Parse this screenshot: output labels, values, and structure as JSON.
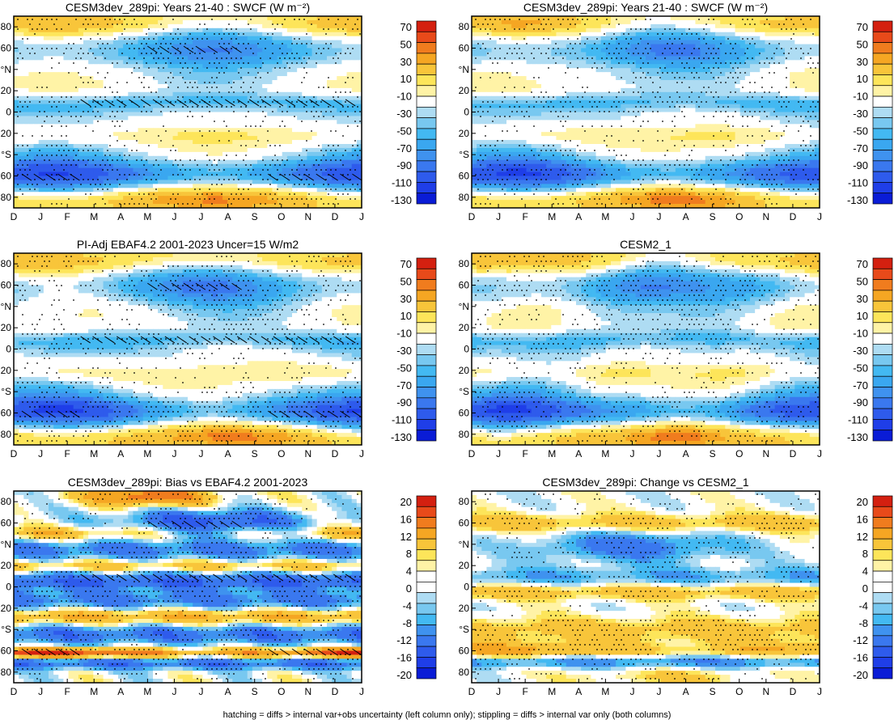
{
  "footnote": "hatching = diffs > internal var+obs uncertainty (left column only); stippling = diffs > internal var only (both columns)",
  "colors": {
    "abs_scale": [
      "#0a1cd6",
      "#1f3ee8",
      "#2e5bec",
      "#3a78ef",
      "#3f92ef",
      "#3aa7f0",
      "#43b9f2",
      "#78c8f0",
      "#aedcf3",
      "#ffffff",
      "#fff3a6",
      "#fde55a",
      "#f8c53a",
      "#f5a623",
      "#f07c1e",
      "#e84a1a",
      "#d42010"
    ],
    "diff_scale": [
      "#0a1cd6",
      "#1f3ee8",
      "#2e5bec",
      "#3a78ef",
      "#3f92ef",
      "#43b9f2",
      "#78c8f0",
      "#aedcf3",
      "#ffffff",
      "#ffffff",
      "#fff3a6",
      "#fde55a",
      "#f8c53a",
      "#f5a623",
      "#f07c1e",
      "#e84a1a",
      "#d42010"
    ]
  },
  "chart_data": [
    {
      "type": "heatmap",
      "id": "p1",
      "title": "CESM3dev_289pi: Years 21-40 : SWCF (W m⁻²)",
      "x_ticks": [
        "D",
        "J",
        "F",
        "M",
        "A",
        "M",
        "J",
        "J",
        "A",
        "S",
        "O",
        "N",
        "D",
        "J"
      ],
      "y_ticks": [
        "80",
        "60",
        "°N",
        "20",
        "0",
        "20",
        "°S",
        "60",
        "80"
      ],
      "colorbar": [
        "70",
        "50",
        "30",
        "10",
        "-10",
        "-30",
        "-50",
        "-70",
        "-90",
        "-110",
        "-130"
      ],
      "field": "abs",
      "variant": 0,
      "hatching": true,
      "stippling": true
    },
    {
      "type": "heatmap",
      "id": "p2",
      "title": "CESM3dev_289pi: Years 21-40 : SWCF (W m⁻²)",
      "x_ticks": [
        "D",
        "J",
        "F",
        "M",
        "A",
        "M",
        "J",
        "J",
        "A",
        "S",
        "O",
        "N",
        "D",
        "J"
      ],
      "y_ticks": [
        "80",
        "60",
        "°N",
        "20",
        "0",
        "20",
        "°S",
        "60",
        "80"
      ],
      "colorbar": [
        "70",
        "50",
        "30",
        "10",
        "-10",
        "-30",
        "-50",
        "-70",
        "-90",
        "-110",
        "-130"
      ],
      "field": "abs",
      "variant": 1,
      "hatching": false,
      "stippling": true
    },
    {
      "type": "heatmap",
      "id": "p3",
      "title": "PI-Adj EBAF4.2 2001-2023 Uncer=15 W/m2",
      "x_ticks": [
        "D",
        "J",
        "F",
        "M",
        "A",
        "M",
        "J",
        "J",
        "A",
        "S",
        "O",
        "N",
        "D",
        "J"
      ],
      "y_ticks": [
        "80",
        "60",
        "°N",
        "20",
        "0",
        "20",
        "°S",
        "60",
        "80"
      ],
      "colorbar": [
        "70",
        "50",
        "30",
        "10",
        "-10",
        "-30",
        "-50",
        "-70",
        "-90",
        "-110",
        "-130"
      ],
      "field": "abs",
      "variant": 2,
      "hatching": true,
      "stippling": true
    },
    {
      "type": "heatmap",
      "id": "p4",
      "title": "CESM2_1",
      "x_ticks": [
        "D",
        "J",
        "F",
        "M",
        "A",
        "M",
        "J",
        "J",
        "A",
        "S",
        "O",
        "N",
        "D",
        "J"
      ],
      "y_ticks": [
        "80",
        "60",
        "°N",
        "20",
        "0",
        "20",
        "°S",
        "60",
        "80"
      ],
      "colorbar": [
        "70",
        "50",
        "30",
        "10",
        "-10",
        "-30",
        "-50",
        "-70",
        "-90",
        "-110",
        "-130"
      ],
      "field": "abs",
      "variant": 3,
      "hatching": false,
      "stippling": true
    },
    {
      "type": "heatmap",
      "id": "p5",
      "title": "CESM3dev_289pi: Bias vs EBAF4.2 2001-2023",
      "x_ticks": [
        "D",
        "J",
        "F",
        "M",
        "A",
        "M",
        "J",
        "J",
        "A",
        "S",
        "O",
        "N",
        "D",
        "J"
      ],
      "y_ticks": [
        "80",
        "60",
        "°N",
        "20",
        "0",
        "20",
        "°S",
        "60",
        "80"
      ],
      "colorbar": [
        "20",
        "16",
        "12",
        "8",
        "4",
        "0",
        "-4",
        "-8",
        "-12",
        "-16",
        "-20"
      ],
      "field": "bias",
      "variant": 0,
      "hatching": true,
      "stippling": true
    },
    {
      "type": "heatmap",
      "id": "p6",
      "title": "CESM3dev_289pi: Change vs CESM2_1",
      "x_ticks": [
        "D",
        "J",
        "F",
        "M",
        "A",
        "M",
        "J",
        "J",
        "A",
        "S",
        "O",
        "N",
        "D",
        "J"
      ],
      "y_ticks": [
        "80",
        "60",
        "°N",
        "20",
        "0",
        "20",
        "°S",
        "60",
        "80"
      ],
      "colorbar": [
        "20",
        "16",
        "12",
        "8",
        "4",
        "0",
        "-4",
        "-8",
        "-12",
        "-16",
        "-20"
      ],
      "field": "change",
      "variant": 0,
      "hatching": false,
      "stippling": true
    }
  ]
}
